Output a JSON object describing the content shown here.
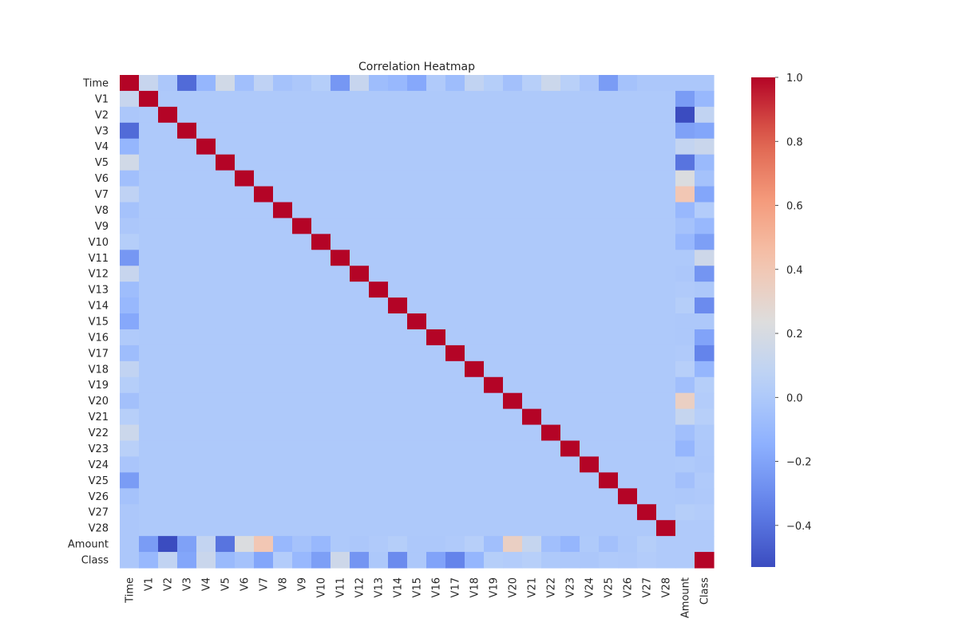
{
  "chart_data": {
    "type": "heatmap",
    "title": "Correlation Heatmap",
    "labels": [
      "Time",
      "V1",
      "V2",
      "V3",
      "V4",
      "V5",
      "V6",
      "V7",
      "V8",
      "V9",
      "V10",
      "V11",
      "V12",
      "V13",
      "V14",
      "V15",
      "V16",
      "V17",
      "V18",
      "V19",
      "V20",
      "V21",
      "V22",
      "V23",
      "V24",
      "V25",
      "V26",
      "V27",
      "V28",
      "Amount",
      "Class"
    ],
    "time_corr": [
      0.12,
      -0.01,
      -0.42,
      -0.11,
      0.17,
      -0.06,
      0.08,
      -0.04,
      -0.01,
      0.03,
      -0.25,
      0.12,
      -0.07,
      -0.1,
      -0.18,
      0.01,
      -0.07,
      0.09,
      0.03,
      -0.05,
      0.04,
      0.14,
      0.05,
      -0.02,
      -0.23,
      -0.04,
      -0.01,
      -0.01,
      -0.01,
      -0.01
    ],
    "amount_corr": [
      -0.01,
      -0.23,
      -0.53,
      -0.21,
      0.1,
      -0.39,
      0.22,
      0.4,
      -0.1,
      -0.04,
      -0.1,
      0,
      -0.01,
      0.01,
      0.03,
      -0.003,
      -0.004,
      0.007,
      0.04,
      -0.06,
      0.34,
      0.11,
      -0.06,
      -0.11,
      0.005,
      -0.05,
      -0.003,
      0.03,
      0.01,
      0.006
    ],
    "class_corr": [
      -0.01,
      -0.1,
      0.09,
      -0.19,
      0.13,
      -0.09,
      -0.04,
      -0.19,
      0.02,
      -0.1,
      -0.22,
      0.15,
      -0.26,
      -0.005,
      -0.3,
      -0.004,
      -0.2,
      -0.33,
      -0.11,
      0.03,
      0.02,
      0.04,
      0,
      -0.003,
      -0.01,
      0.007,
      0.004,
      0.02,
      0.01,
      0.006
    ],
    "colorbar": {
      "min": -0.53,
      "max": 1.0,
      "ticks": [
        1.0,
        0.8,
        0.6,
        0.4,
        0.2,
        0.0,
        -0.2,
        -0.4
      ]
    },
    "colormap": "coolwarm",
    "tick_labels": [
      "1.0",
      "0.8",
      "0.6",
      "0.4",
      "0.2",
      "0.0",
      "−0.2",
      "−0.4"
    ]
  }
}
